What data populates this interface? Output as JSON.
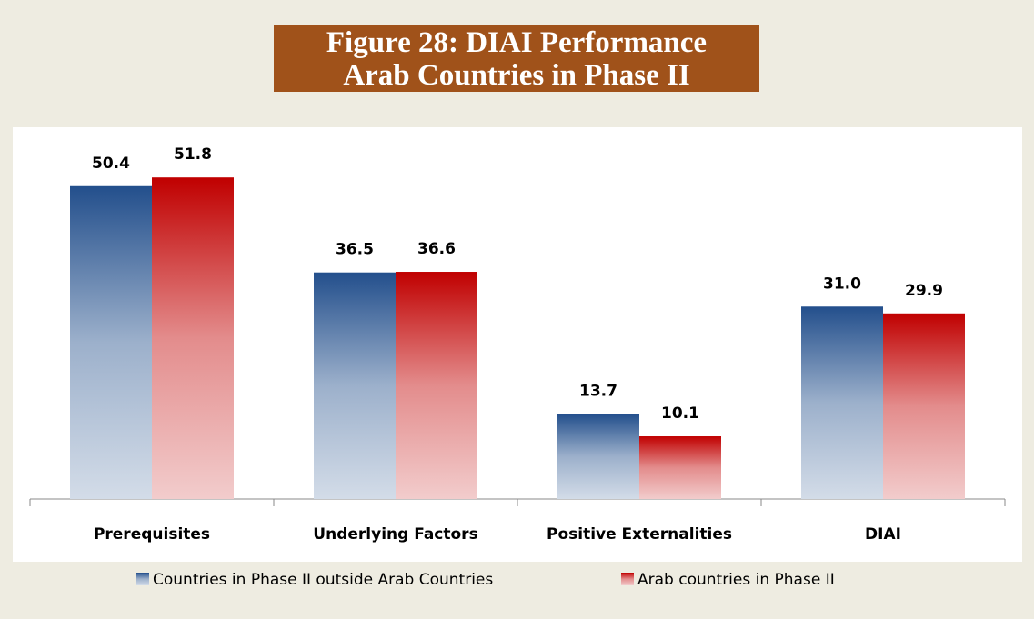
{
  "chart_data": {
    "type": "bar",
    "title": "Figure 28: DIAI Performance\nArab Countries in Phase II",
    "categories": [
      "Prerequisites",
      "Underlying Factors",
      "Positive Externalities",
      "DIAI"
    ],
    "series": [
      {
        "name": "Countries in Phase II outside Arab Countries",
        "color": "#234f8c",
        "values": [
          50.4,
          36.5,
          13.7,
          31.0
        ],
        "value_labels": [
          "50.4",
          "36.5",
          "13.7",
          "31.0"
        ]
      },
      {
        "name": "Arab countries in Phase II",
        "color": "#c00000",
        "values": [
          51.8,
          36.6,
          10.1,
          29.9
        ],
        "value_labels": [
          "51.8",
          "36.6",
          "10.1",
          "29.9"
        ]
      }
    ],
    "legend": "bottom"
  }
}
